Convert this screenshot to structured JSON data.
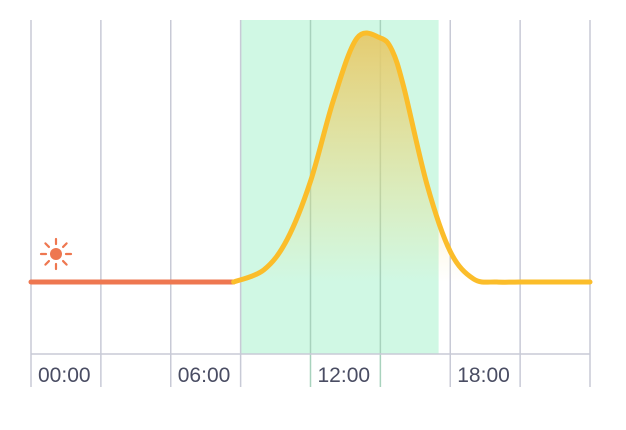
{
  "chart_data": {
    "type": "line",
    "xlabel": "",
    "ylabel": "",
    "x_range_hours": [
      0,
      24
    ],
    "y_range": [
      0,
      1
    ],
    "tick_labels": [
      "00:00",
      "06:00",
      "12:00",
      "18:00"
    ],
    "tick_hours": [
      0,
      6,
      12,
      18
    ],
    "gridline_hours": [
      0,
      3,
      6,
      9,
      12,
      15,
      18,
      21,
      24
    ],
    "highlight_hours": [
      9,
      17.5
    ],
    "split_hour": 8.7,
    "series": [
      {
        "role": "before",
        "x": [
          0,
          3,
          6,
          8.7
        ],
        "y": [
          0.2,
          0.2,
          0.2,
          0.2
        ]
      },
      {
        "role": "after",
        "x": [
          8.7,
          10,
          11,
          12,
          13,
          14,
          15,
          15.5,
          16,
          17,
          18,
          19,
          20,
          21,
          22,
          23,
          24
        ],
        "y": [
          0.2,
          0.24,
          0.34,
          0.53,
          0.8,
          1.0,
          1.0,
          0.96,
          0.84,
          0.52,
          0.3,
          0.21,
          0.2,
          0.2,
          0.2,
          0.2,
          0.2
        ]
      }
    ],
    "colors": {
      "before_line": "#ee7750",
      "after_line": "#fbbd2a",
      "highlight_band": "#d0f8e4",
      "gridline": "#c8cad6",
      "sun_icon": "#ee7750"
    },
    "icon": "sun-icon"
  }
}
